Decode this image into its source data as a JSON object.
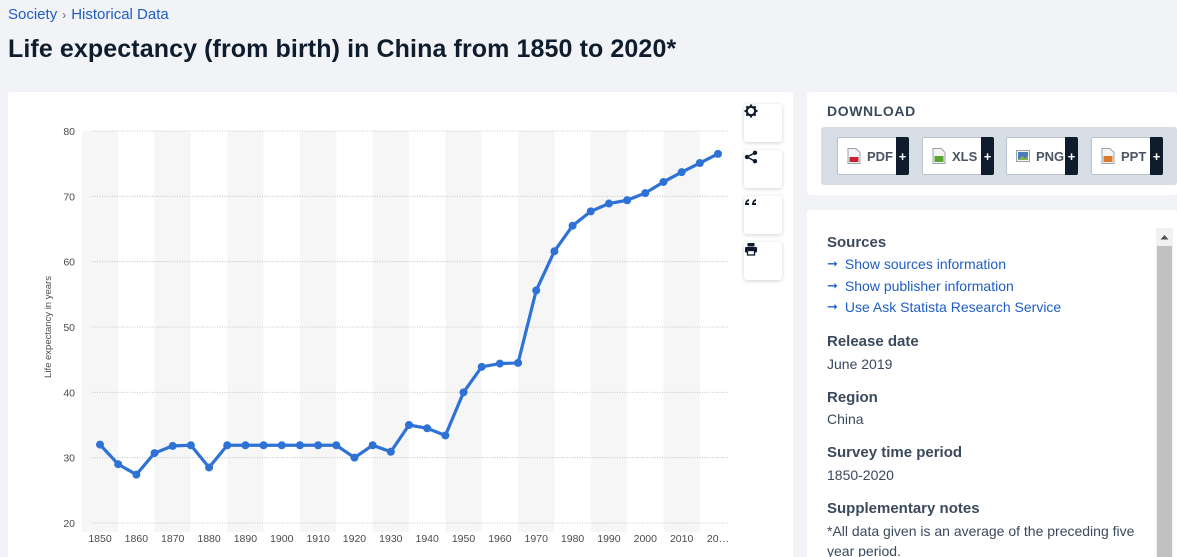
{
  "breadcrumb": {
    "items": [
      "Society",
      "Historical Data"
    ],
    "separator": "›"
  },
  "page": {
    "title": "Life expectancy (from birth) in China from 1850 to 2020*"
  },
  "toolbar": {
    "icons": [
      "gear-icon",
      "share-icon",
      "quote-icon",
      "print-icon"
    ]
  },
  "download": {
    "title": "DOWNLOAD",
    "buttons": [
      {
        "label": "PDF",
        "icon": "pdf-file-icon",
        "color": "#c8202f"
      },
      {
        "label": "XLS",
        "icon": "xls-file-icon",
        "color": "#5aa532"
      },
      {
        "label": "PNG",
        "icon": "png-file-icon",
        "color": "#4a7bbf"
      },
      {
        "label": "PPT",
        "icon": "ppt-file-icon",
        "color": "#e0782a"
      }
    ],
    "plus": "+"
  },
  "info": {
    "sources_title": "Sources",
    "links": [
      "Show sources information",
      "Show publisher information",
      "Use Ask Statista Research Service"
    ],
    "release_title": "Release date",
    "release_value": "June 2019",
    "region_title": "Region",
    "region_value": "China",
    "survey_title": "Survey time period",
    "survey_value": "1850-2020",
    "notes_title": "Supplementary notes",
    "notes_value": "*All data given is an average of the preceding five year period."
  },
  "chart_data": {
    "type": "line",
    "ylabel": "Life expectancy in years",
    "xlabel": "",
    "ylim": [
      20,
      80
    ],
    "yticks": [
      20,
      30,
      40,
      50,
      60,
      70,
      80
    ],
    "xtick_labels": [
      "1850",
      "1860",
      "1870",
      "1880",
      "1890",
      "1900",
      "1910",
      "1920",
      "1930",
      "1940",
      "1950",
      "1960",
      "1970",
      "1980",
      "1990",
      "2000",
      "2010",
      "20…"
    ],
    "grid": true,
    "line_color": "#2f72d6",
    "series": [
      {
        "x": [
          1850,
          1855,
          1860,
          1865,
          1870,
          1875,
          1880,
          1885,
          1890,
          1895,
          1900,
          1905,
          1910,
          1915,
          1920,
          1925,
          1930,
          1935,
          1940,
          1945,
          1950,
          1955,
          1960,
          1965,
          1970,
          1975,
          1980,
          1985,
          1990,
          1995,
          2000,
          2005,
          2010,
          2015,
          2020
        ],
        "values": [
          32,
          29,
          27.4,
          30.7,
          31.8,
          31.9,
          28.5,
          31.9,
          31.9,
          31.9,
          31.9,
          31.9,
          31.9,
          31.9,
          30,
          31.9,
          30.9,
          35,
          34.5,
          33.4,
          40,
          43.9,
          44.4,
          44.5,
          55.6,
          61.6,
          65.5,
          67.7,
          68.9,
          69.4,
          70.5,
          72.2,
          73.7,
          75.1,
          76.5
        ]
      }
    ]
  }
}
